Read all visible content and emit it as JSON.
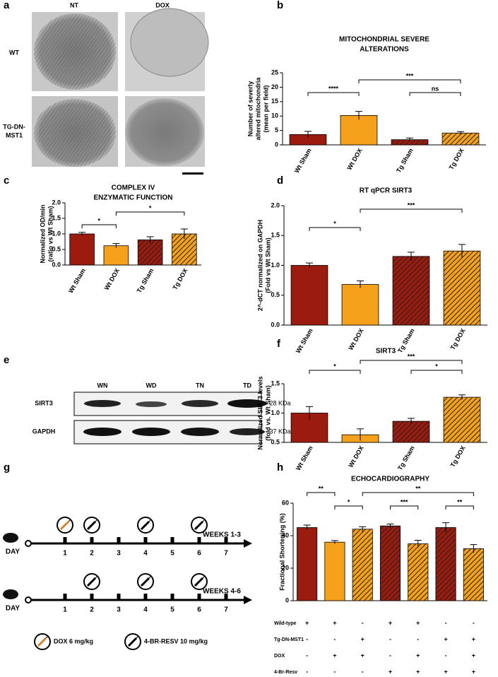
{
  "panel_labels": [
    "a",
    "b",
    "c",
    "d",
    "e",
    "f",
    "g",
    "h"
  ],
  "micrographs": {
    "columns": [
      "NT",
      "DOX"
    ],
    "rows": [
      "WT",
      "TG-DN-",
      "MST1"
    ]
  },
  "blot": {
    "lanes": [
      "WN",
      "WD",
      "TN",
      "TD"
    ],
    "bands": [
      {
        "name": "SIRT3",
        "size": "- 28 KDa"
      },
      {
        "name": "GAPDH",
        "size": "- 37 KDa"
      }
    ]
  },
  "timeline": {
    "rows": [
      {
        "day_label": "DAY",
        "weeks": "WEEKS 1-3"
      },
      {
        "day_label": "DAY",
        "weeks": "WEEKS 4-6"
      }
    ],
    "days": [
      1,
      2,
      3,
      4,
      5,
      6,
      7
    ],
    "legend": [
      "DOX 6 mg/kg",
      "4-BR-RESV 10 mg/kg"
    ]
  },
  "chart_data": [
    {
      "type": "bar",
      "title": [
        "MITOCHONDRIAL SEVERE",
        "ALTERATIONS"
      ],
      "ylabel": [
        "Number of severly",
        "altered mitochondria",
        "(mean per field)"
      ],
      "categories": [
        "Wt Sham",
        "Wt DOX",
        "Tg Sham",
        "Tg DOX"
      ],
      "values": [
        3.6,
        10.2,
        1.8,
        4.1
      ],
      "errors": [
        1.1,
        1.4,
        0.6,
        0.5
      ],
      "colors": [
        "#9b1c0f",
        "#f5a11c",
        "#9b1c0f",
        "#f5a11c"
      ],
      "hatched": [
        false,
        false,
        true,
        true
      ],
      "ylim": [
        0,
        25
      ],
      "yticks": [
        0,
        5,
        10,
        15,
        20,
        25
      ],
      "annotations": [
        {
          "text": "****"
        },
        {
          "text": "***"
        },
        {
          "text": "ns"
        }
      ]
    },
    {
      "type": "bar",
      "title": [
        "COMPLEX IV",
        "ENZYMATIC FUNCTION"
      ],
      "ylabel": [
        "Normalized OD/min",
        "(ratio vs Wt Sham)"
      ],
      "categories": [
        "Wt Sham",
        "Wt DOX",
        "Tg Sham",
        "Tg DOX"
      ],
      "values": [
        1.0,
        0.62,
        0.81,
        1.0
      ],
      "errors": [
        0.05,
        0.07,
        0.1,
        0.16
      ],
      "colors": [
        "#9b1c0f",
        "#f5a11c",
        "#9b1c0f",
        "#f5a11c"
      ],
      "hatched": [
        false,
        false,
        true,
        true
      ],
      "ylim": [
        0,
        2
      ],
      "yticks": [
        {
          "value": 0,
          "label": "0.0"
        },
        {
          "value": 0.5,
          "label": "0.5"
        },
        {
          "value": 1,
          "label": "1.0"
        },
        {
          "value": 1.5,
          "label": "1.5"
        },
        {
          "value": 2,
          "label": "2.0"
        }
      ],
      "annotations": [
        {
          "text": "*"
        },
        {
          "text": "*"
        }
      ]
    },
    {
      "type": "bar",
      "title": [
        "RT qPCR SIRT3"
      ],
      "ylabel": [
        "2^-dCT normalized on GAPDH",
        "(Fold vs Wt Sham)"
      ],
      "categories": [
        "Wt Sham",
        "Wt DOX",
        "Tg Sham",
        "Tg DOX"
      ],
      "values": [
        1.0,
        0.68,
        1.15,
        1.24
      ],
      "errors": [
        0.04,
        0.06,
        0.07,
        0.11
      ],
      "colors": [
        "#9b1c0f",
        "#f5a11c",
        "#9b1c0f",
        "#f5a11c"
      ],
      "hatched": [
        false,
        false,
        true,
        true
      ],
      "ylim": [
        0,
        2
      ],
      "yticks": [
        {
          "value": 0,
          "label": "0.0"
        },
        {
          "value": 0.5,
          "label": "0.5"
        },
        {
          "value": 1,
          "label": "1.0"
        },
        {
          "value": 1.5,
          "label": "1.5"
        },
        {
          "value": 2,
          "label": "2.0"
        }
      ],
      "annotations": [
        {
          "text": "*"
        },
        {
          "text": "***"
        }
      ]
    },
    {
      "type": "bar",
      "title": [
        "SIRT3"
      ],
      "ylabel": [
        "Normalized SIRT3 levels",
        "(fold vs. Wt Sham)"
      ],
      "categories": [
        "Wt Sham",
        "Wt DOX",
        "Tg Sham",
        "Tg DOX"
      ],
      "values": [
        1.0,
        0.63,
        0.86,
        1.27
      ],
      "errors": [
        0.11,
        0.1,
        0.05,
        0.04
      ],
      "colors": [
        "#9b1c0f",
        "#f5a11c",
        "#9b1c0f",
        "#f5a11c"
      ],
      "hatched": [
        false,
        false,
        true,
        true
      ],
      "ylim": [
        0.5,
        1.5
      ],
      "yticks": [
        0.5,
        {
          "value": 1,
          "label": "1.0"
        },
        1.5
      ],
      "annotations": [
        {
          "text": "*"
        },
        {
          "text": "***"
        },
        {
          "text": "*"
        }
      ]
    },
    {
      "type": "bar",
      "title": [
        "ECHOCARDIOGRAPHY"
      ],
      "ylabel": [
        "Fractional Shortening (%)"
      ],
      "categories": [
        null,
        null,
        null,
        null,
        null,
        null,
        null
      ],
      "values": [
        45,
        36,
        44,
        46,
        35,
        45,
        32
      ],
      "errors": [
        1.5,
        1,
        1.5,
        1.2,
        2.2,
        3,
        2.5
      ],
      "colors": [
        "#9b1c0f",
        "#f5a11c",
        "#f5a11c",
        "#9b1c0f",
        "#f5a11c",
        "#9b1c0f",
        "#f5a11c"
      ],
      "hatched": [
        false,
        false,
        true,
        true,
        true,
        true,
        true
      ],
      "ylim": [
        0,
        60
      ],
      "yticks": [
        0,
        20,
        40,
        60
      ],
      "annotations": [
        {
          "text": "**"
        },
        {
          "text": "*"
        },
        {
          "text": "***"
        },
        {
          "text": "**"
        },
        {
          "text": "**"
        }
      ],
      "conditions": [
        {
          "name": "Wild-type",
          "marks": [
            "+",
            "+",
            "-",
            "+",
            "+",
            "-",
            "-"
          ]
        },
        {
          "name": "Tg-DN-MST1",
          "marks": [
            "-",
            "-",
            "+",
            "-",
            "-",
            "+",
            "+"
          ]
        },
        {
          "name": "DOX",
          "marks": [
            "-",
            "+",
            "+",
            "-",
            "+",
            "-",
            "+"
          ]
        },
        {
          "name": "4-Br-Resv",
          "marks": [
            "-",
            "-",
            "-",
            "+",
            "+",
            "+",
            "+"
          ]
        }
      ]
    }
  ]
}
